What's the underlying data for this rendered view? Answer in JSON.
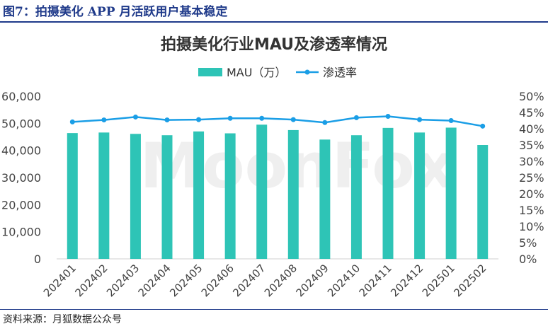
{
  "caption": "图7：拍摄美化 APP 月活跃用户基本稳定",
  "source": "资料来源：月狐数据公众号",
  "watermark": "MoonFox",
  "chart_data": {
    "type": "bar",
    "title": "拍摄美化行业MAU及渗透率情况",
    "categories": [
      "202401",
      "202402",
      "202403",
      "202404",
      "202405",
      "202406",
      "202407",
      "202408",
      "202409",
      "202410",
      "202411",
      "202412",
      "202501",
      "202502"
    ],
    "series": [
      {
        "name": "MAU（万）",
        "type": "bar",
        "axis": "left",
        "color": "#2ec4b6",
        "values": [
          46400,
          46600,
          46100,
          45600,
          47000,
          46300,
          49500,
          47500,
          44000,
          45600,
          48300,
          46600,
          48400,
          42000
        ]
      },
      {
        "name": "渗透率",
        "type": "line",
        "axis": "right",
        "color": "#1a9ee6",
        "values": [
          42.1,
          42.7,
          43.6,
          42.7,
          42.8,
          43.2,
          43.2,
          42.8,
          41.9,
          43.4,
          43.8,
          42.8,
          42.5,
          40.8
        ]
      }
    ],
    "y_left": {
      "min": 0,
      "max": 60000,
      "ticks": [
        "0",
        "10,000",
        "20,000",
        "30,000",
        "40,000",
        "50,000",
        "60,000"
      ]
    },
    "y_right": {
      "min": 0,
      "max": 50,
      "ticks": [
        "0%",
        "5%",
        "10%",
        "15%",
        "20%",
        "25%",
        "30%",
        "35%",
        "40%",
        "45%",
        "50%"
      ]
    },
    "legend": "top",
    "grid": false
  }
}
